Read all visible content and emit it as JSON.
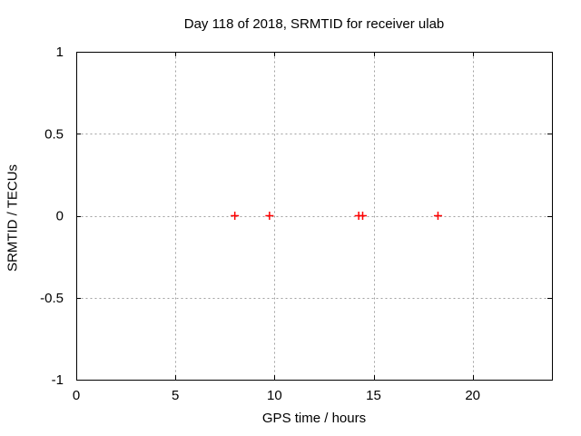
{
  "chart_data": {
    "type": "scatter",
    "title": "Day 118 of 2018, SRMTID for receiver ulab",
    "xlabel": "GPS time / hours",
    "ylabel": "SRMTID / TECUs",
    "xlim": [
      0,
      24
    ],
    "ylim": [
      -1,
      1
    ],
    "x_tick_values": [
      0,
      5,
      10,
      15,
      20
    ],
    "x_tick_labels": [
      "0",
      "5",
      "10",
      "15",
      "20"
    ],
    "y_tick_values": [
      -1,
      -0.5,
      0,
      0.5,
      1
    ],
    "y_tick_labels": [
      "-1",
      "-0.5",
      "0",
      "0.5",
      "1"
    ],
    "grid": {
      "visible": true,
      "style": "dashed",
      "at_x_ticks": [
        5,
        10,
        15,
        20
      ],
      "at_y_ticks": [
        -0.5,
        0,
        0.5
      ]
    },
    "legend": "none",
    "series": [
      {
        "marker": "plus",
        "color": "#ff0000",
        "points": [
          {
            "x": 8.0,
            "y": 0.0
          },
          {
            "x": 9.75,
            "y": 0.0
          },
          {
            "x": 14.25,
            "y": 0.0
          },
          {
            "x": 14.45,
            "y": 0.0
          },
          {
            "x": 18.25,
            "y": 0.0
          }
        ]
      }
    ],
    "colors": {
      "background": "#ffffff",
      "axis": "#000000",
      "grid": "#a0a0a0",
      "text": "#000000",
      "marker": "#ff0000"
    }
  }
}
